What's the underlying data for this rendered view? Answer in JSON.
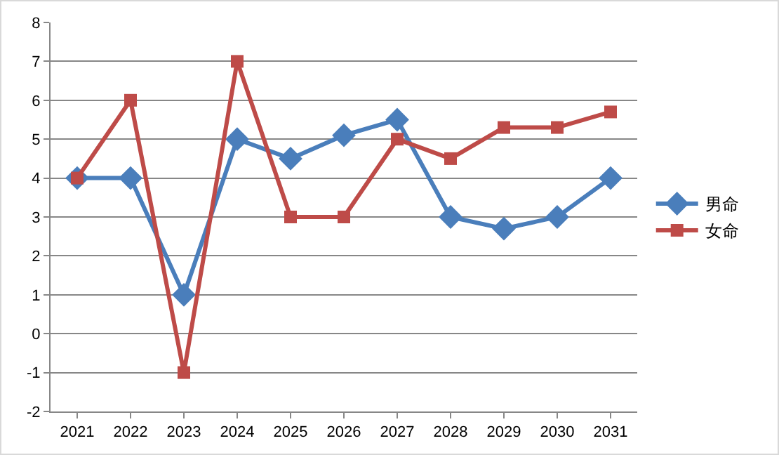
{
  "chart_data": {
    "type": "line",
    "categories": [
      "2021",
      "2022",
      "2023",
      "2024",
      "2025",
      "2026",
      "2027",
      "2028",
      "2029",
      "2030",
      "2031"
    ],
    "series": [
      {
        "name": "男命",
        "color": "#4a7ebb",
        "marker": "diamond",
        "values": [
          4,
          4,
          1,
          5,
          4.5,
          5.1,
          5.5,
          3,
          2.7,
          3,
          4
        ]
      },
      {
        "name": "女命",
        "color": "#be4b48",
        "marker": "square",
        "values": [
          4,
          6,
          -1,
          7,
          3,
          3,
          5,
          4.5,
          5.3,
          5.3,
          5.7
        ]
      }
    ],
    "ylim": [
      -2,
      8
    ],
    "yticks": [
      -2,
      -1,
      0,
      1,
      2,
      3,
      4,
      5,
      6,
      7,
      8
    ],
    "grid": "y",
    "legend": "right",
    "line_style": "solid"
  }
}
